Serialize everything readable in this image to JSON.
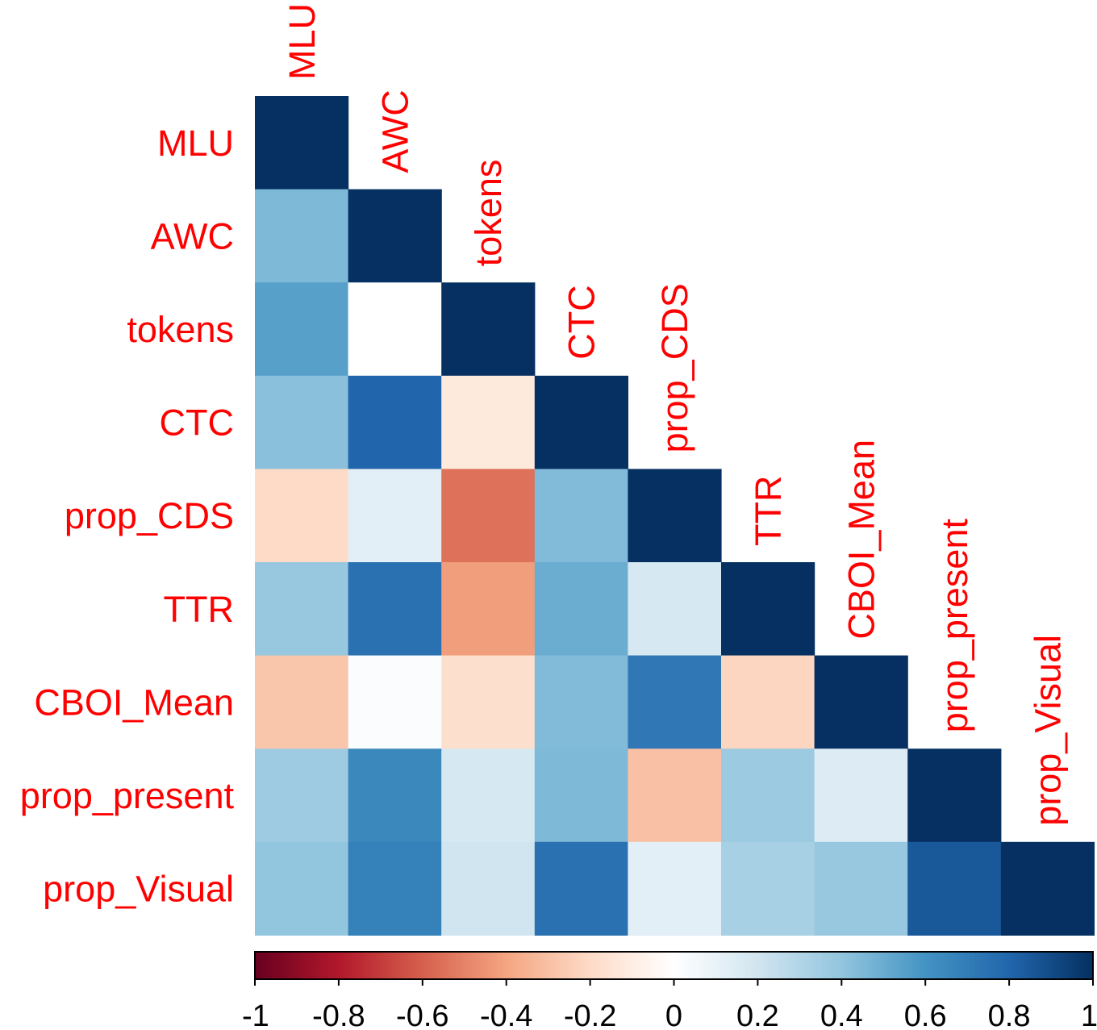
{
  "chart_data": {
    "type": "heatmap",
    "variables": [
      "MLU",
      "AWC",
      "tokens",
      "CTC",
      "prop_CDS",
      "TTR",
      "CBOI_Mean",
      "prop_present",
      "prop_Visual"
    ],
    "layout": "lower-triangle",
    "values": [
      [
        1.0
      ],
      [
        0.45,
        1.0
      ],
      [
        0.55,
        0.0,
        1.0
      ],
      [
        0.42,
        0.8,
        -0.12,
        1.0
      ],
      [
        -0.2,
        0.12,
        -0.55,
        0.44,
        1.0
      ],
      [
        0.38,
        0.75,
        -0.42,
        0.5,
        0.18,
        1.0
      ],
      [
        -0.28,
        0.02,
        -0.18,
        0.44,
        0.72,
        -0.22,
        1.0
      ],
      [
        0.36,
        0.65,
        0.18,
        0.45,
        -0.3,
        0.37,
        0.15,
        1.0
      ],
      [
        0.4,
        0.68,
        0.2,
        0.75,
        0.12,
        0.33,
        0.38,
        0.85,
        1.0
      ]
    ],
    "colorbar": {
      "ticks": [
        "-1",
        "-0.8",
        "-0.6",
        "-0.4",
        "-0.2",
        "0",
        "0.2",
        "0.4",
        "0.6",
        "0.8",
        "1"
      ],
      "range": [
        -1,
        1
      ],
      "colors": [
        "#67001F",
        "#B2182B",
        "#D6604D",
        "#F4A582",
        "#FDDBC7",
        "#FFFFFF",
        "#D1E5F0",
        "#92C5DE",
        "#4393C3",
        "#2166AC",
        "#053061"
      ]
    },
    "label_color": "#FF0000"
  }
}
